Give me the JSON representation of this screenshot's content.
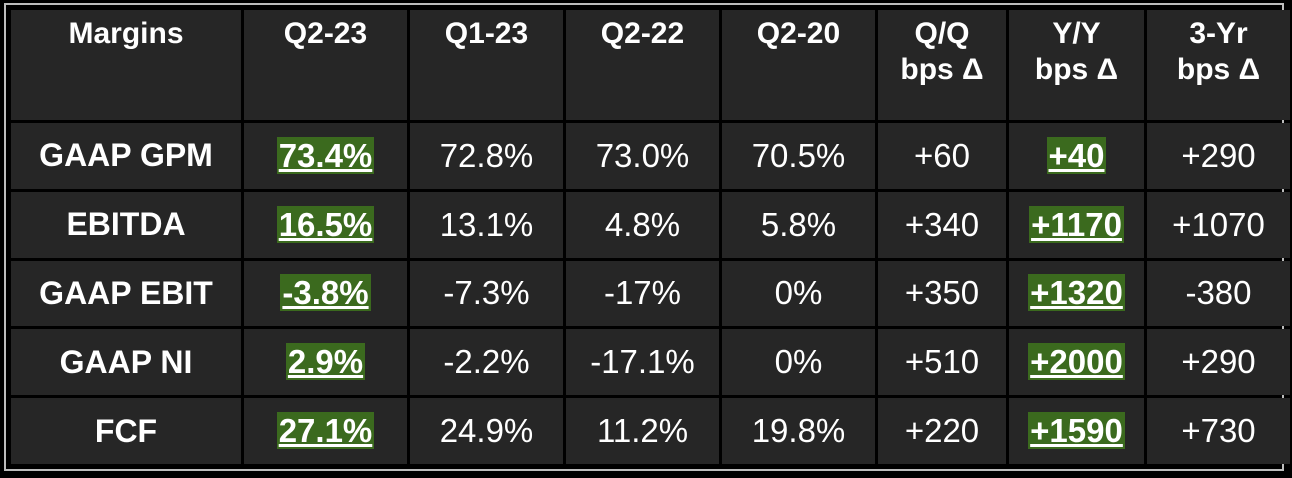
{
  "table": {
    "header": [
      "Margins",
      "Q2-23",
      "Q1-23",
      "Q2-22",
      "Q2-20",
      "Q/Q\nbps Δ",
      "Y/Y\nbps Δ",
      "3-Yr\nbps Δ"
    ],
    "rows": [
      [
        "GAAP GPM",
        "73.4%",
        "72.8%",
        "73.0%",
        "70.5%",
        "+60",
        "+40",
        "+290"
      ],
      [
        "EBITDA",
        "16.5%",
        "13.1%",
        "4.8%",
        "5.8%",
        "+340",
        "+1170",
        "+1070"
      ],
      [
        "GAAP EBIT",
        "-3.8%",
        "-7.3%",
        "-17%",
        "0%",
        "+350",
        "+1320",
        "-380"
      ],
      [
        "GAAP NI",
        "2.9%",
        "-2.2%",
        "-17.1%",
        "0%",
        "+510",
        "+2000",
        "+290"
      ],
      [
        "FCF",
        "27.1%",
        "24.9%",
        "11.2%",
        "19.8%",
        "+220",
        "+1590",
        "+730"
      ]
    ]
  }
}
